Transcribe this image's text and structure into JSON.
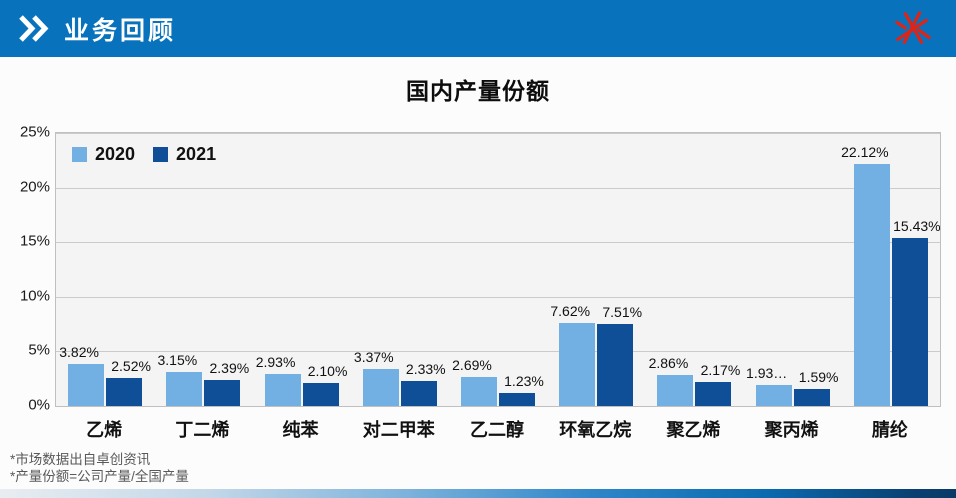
{
  "header": {
    "title": "业务回顾"
  },
  "colors": {
    "header_blue": "#0873BC",
    "logo_red": "#DC2418",
    "series_2020": "#72AFE2",
    "series_2021": "#0E4F98",
    "plot_background": "#F4F4F5",
    "gridline": "#CBCBCB"
  },
  "chart_data": {
    "type": "bar",
    "title": "国内产量份额",
    "categories": [
      "乙烯",
      "丁二烯",
      "纯苯",
      "对二甲苯",
      "乙二醇",
      "环氧乙烷",
      "聚乙烯",
      "聚丙烯",
      "腈纶"
    ],
    "series": [
      {
        "name": "2020",
        "color": "#72AFE2",
        "values": [
          3.82,
          3.15,
          2.93,
          3.37,
          2.69,
          7.62,
          2.86,
          1.93,
          22.12
        ],
        "labels": [
          "3.82%",
          "3.15%",
          "2.93%",
          "3.37%",
          "2.69%",
          "7.62%",
          "2.86%",
          "1.93…",
          "22.12%"
        ]
      },
      {
        "name": "2021",
        "color": "#0E4F98",
        "values": [
          2.52,
          2.39,
          2.1,
          2.33,
          1.23,
          7.51,
          2.17,
          1.59,
          15.43
        ],
        "labels": [
          "2.52%",
          "2.39%",
          "2.10%",
          "2.33%",
          "1.23%",
          "7.51%",
          "2.17%",
          "1.59%",
          "15.43%"
        ]
      }
    ],
    "ylim": [
      0,
      25
    ],
    "yticks": [
      {
        "value": 0,
        "label": "0%"
      },
      {
        "value": 5,
        "label": "5%"
      },
      {
        "value": 10,
        "label": "10%"
      },
      {
        "value": 15,
        "label": "15%"
      },
      {
        "value": 20,
        "label": "20%"
      },
      {
        "value": 25,
        "label": "25%"
      }
    ],
    "grid": true,
    "legend_position": "top-left"
  },
  "footnotes": [
    "*市场数据出自卓创资讯",
    "*产量份额=公司产量/全国产量"
  ]
}
